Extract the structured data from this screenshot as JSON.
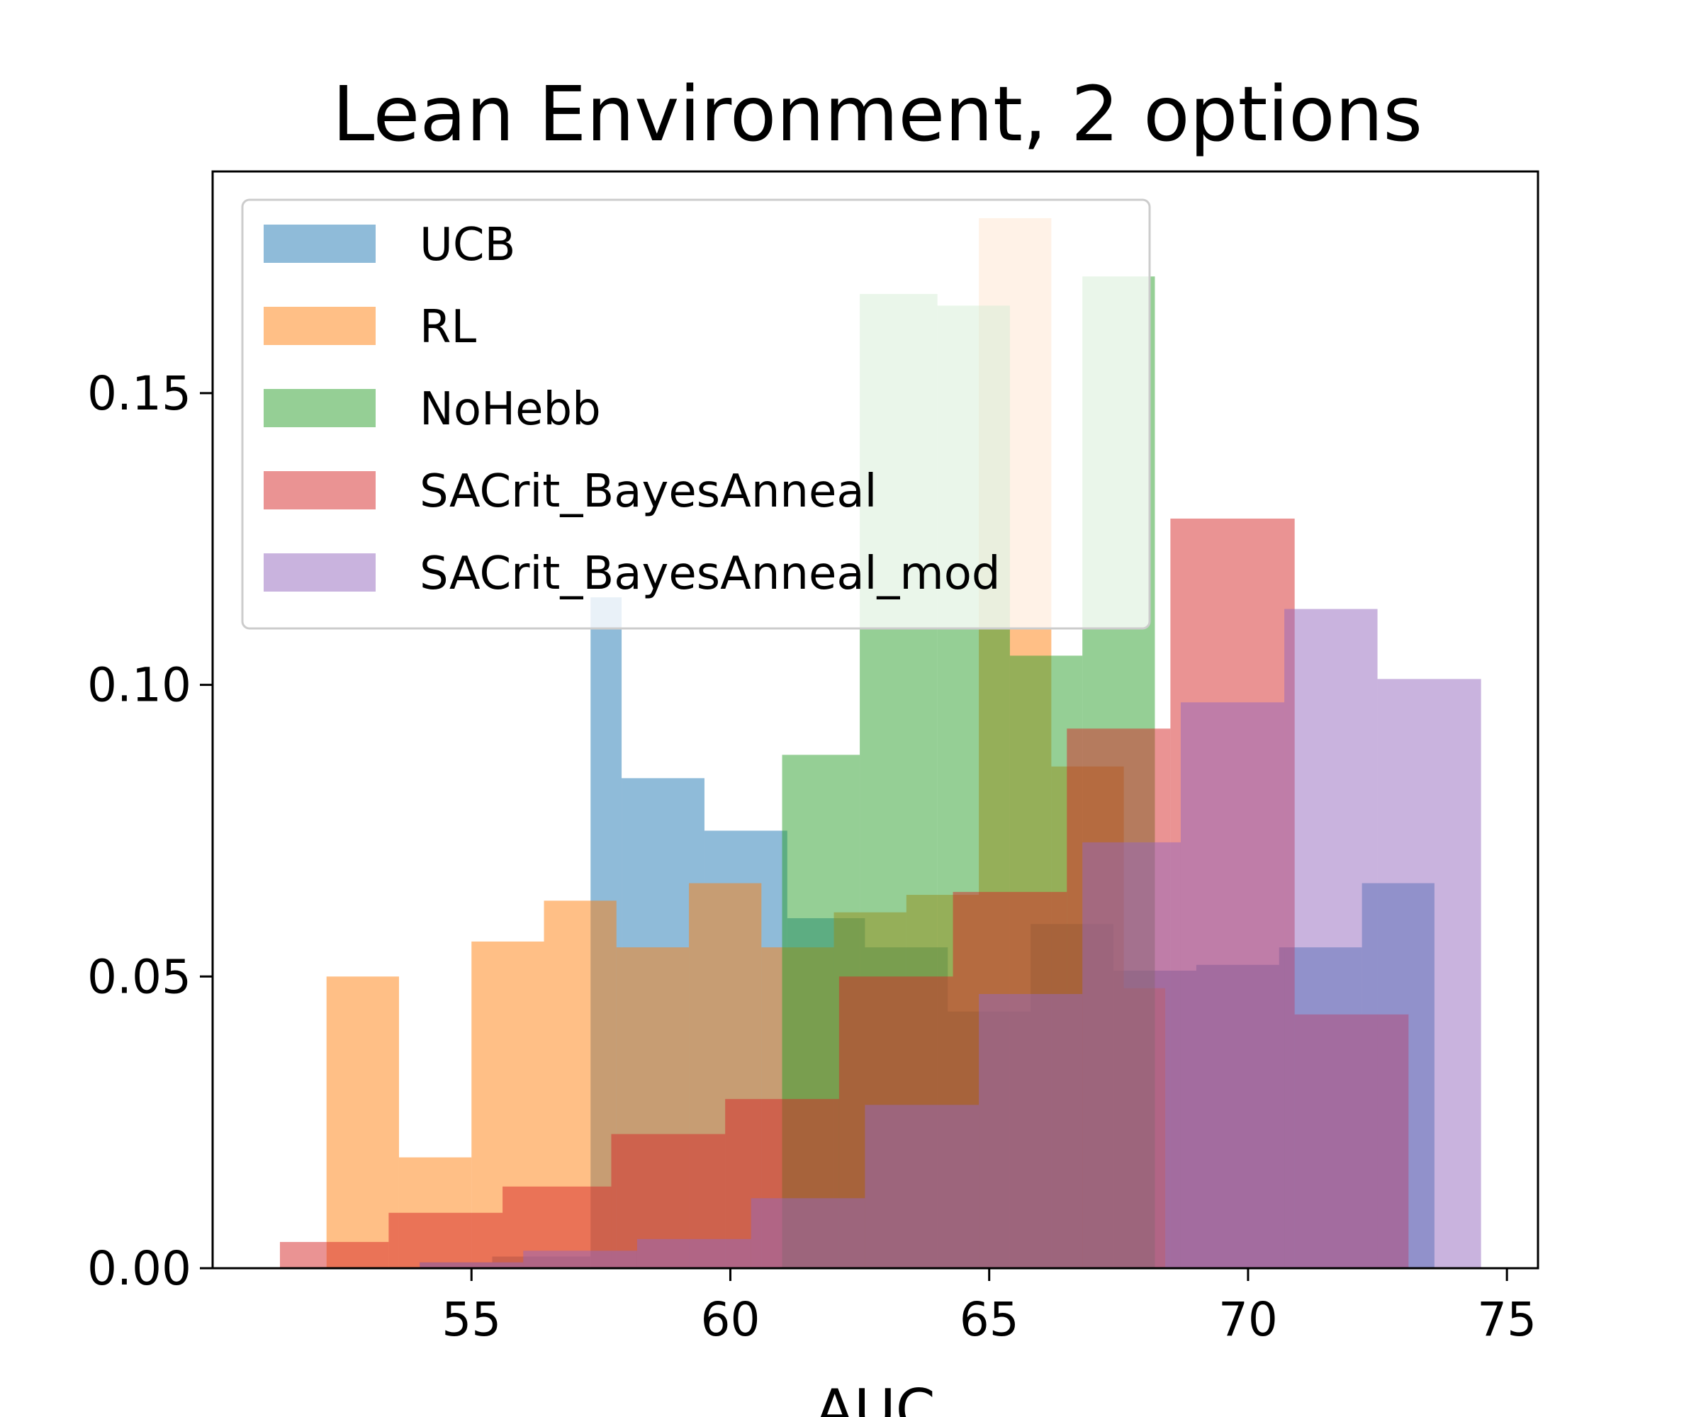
{
  "chart_data": {
    "type": "histogram",
    "title": "Lean Environment, 2 options",
    "xlabel": "AUC",
    "ylabel": "",
    "xlim": [
      50.0,
      75.6
    ],
    "ylim": [
      0,
      0.188
    ],
    "xticks": [
      55,
      60,
      65,
      70,
      75
    ],
    "xtick_labels": [
      "55",
      "60",
      "65",
      "70",
      "75"
    ],
    "yticks": [
      0.0,
      0.05,
      0.1,
      0.15
    ],
    "ytick_labels": [
      "0.00",
      "0.05",
      "0.10",
      "0.15"
    ],
    "grid": false,
    "legend_position": "upper-left",
    "series": [
      {
        "name": "UCB",
        "color": "#1f77b4",
        "bins": [
          [
            54.0,
            55.4,
            0.001
          ],
          [
            55.4,
            57.3,
            0.002
          ],
          [
            57.3,
            57.9,
            0.115
          ],
          [
            57.9,
            59.5,
            0.084
          ],
          [
            59.5,
            61.1,
            0.075
          ],
          [
            61.1,
            62.6,
            0.06
          ],
          [
            62.6,
            64.2,
            0.055
          ],
          [
            64.2,
            65.8,
            0.044
          ],
          [
            65.8,
            67.4,
            0.059
          ],
          [
            67.4,
            69.0,
            0.051
          ],
          [
            69.0,
            70.6,
            0.052
          ],
          [
            70.6,
            72.2,
            0.055
          ],
          [
            72.2,
            73.6,
            0.066
          ]
        ]
      },
      {
        "name": "RL",
        "color": "#ff7f0e",
        "bins": [
          [
            52.2,
            53.6,
            0.05
          ],
          [
            53.6,
            55.0,
            0.019
          ],
          [
            55.0,
            56.4,
            0.056
          ],
          [
            56.4,
            57.8,
            0.063
          ],
          [
            57.8,
            59.2,
            0.055
          ],
          [
            59.2,
            60.6,
            0.066
          ],
          [
            60.6,
            62.0,
            0.055
          ],
          [
            62.0,
            63.4,
            0.061
          ],
          [
            63.4,
            64.8,
            0.064
          ],
          [
            64.8,
            66.2,
            0.18
          ],
          [
            66.2,
            67.6,
            0.086
          ],
          [
            67.6,
            68.4,
            0.048
          ]
        ]
      },
      {
        "name": "NoHebb",
        "color": "#2ca02c",
        "bins": [
          [
            61.0,
            62.5,
            0.088
          ],
          [
            62.5,
            64.0,
            0.167
          ],
          [
            64.0,
            65.4,
            0.165
          ],
          [
            65.4,
            66.8,
            0.105
          ],
          [
            66.8,
            68.2,
            0.17
          ]
        ]
      },
      {
        "name": "SACrit_BayesAnneal",
        "color": "#d62728",
        "bins": [
          [
            51.3,
            52.2,
            0.0045
          ],
          [
            52.2,
            53.4,
            0.0045
          ],
          [
            53.4,
            55.6,
            0.0095
          ],
          [
            55.6,
            57.7,
            0.014
          ],
          [
            57.7,
            59.9,
            0.023
          ],
          [
            59.9,
            62.1,
            0.029
          ],
          [
            62.1,
            64.3,
            0.05
          ],
          [
            64.3,
            66.5,
            0.0645
          ],
          [
            66.5,
            68.5,
            0.0925
          ],
          [
            68.5,
            70.9,
            0.1285
          ],
          [
            70.9,
            73.1,
            0.0435
          ]
        ]
      },
      {
        "name": "SACrit_BayesAnneal_mod",
        "color": "#9467bd",
        "bins": [
          [
            54.0,
            56.0,
            0.001
          ],
          [
            56.0,
            58.2,
            0.003
          ],
          [
            58.2,
            60.4,
            0.005
          ],
          [
            60.4,
            62.6,
            0.012
          ],
          [
            62.6,
            64.8,
            0.028
          ],
          [
            64.8,
            66.8,
            0.047
          ],
          [
            66.8,
            68.7,
            0.073
          ],
          [
            68.7,
            70.7,
            0.097
          ],
          [
            70.7,
            72.5,
            0.113
          ],
          [
            72.5,
            74.5,
            0.101
          ]
        ]
      }
    ]
  }
}
